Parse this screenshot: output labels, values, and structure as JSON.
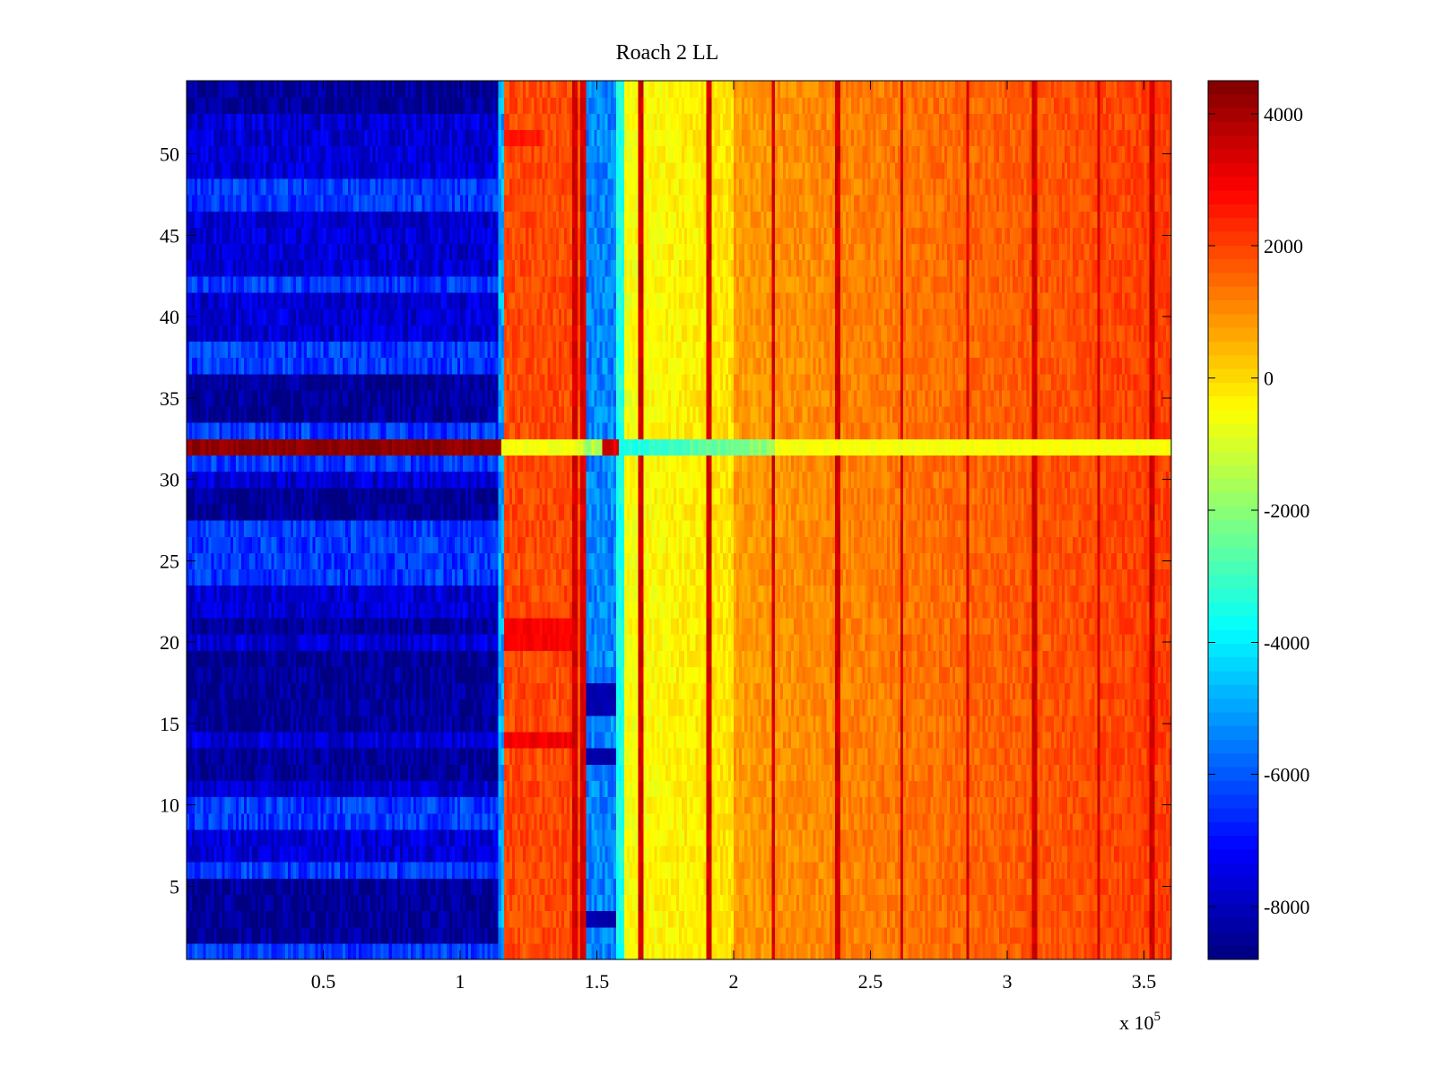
{
  "chart_data": {
    "type": "heatmap",
    "title": "Roach 2 LL",
    "xlabel": "",
    "ylabel": "",
    "x_multiplier_label": "x 10",
    "x_multiplier_exponent": "5",
    "xlim": [
      0,
      360000
    ],
    "ylim": [
      0.5,
      54.5
    ],
    "x_ticks": [
      50000,
      100000,
      150000,
      200000,
      250000,
      300000,
      350000
    ],
    "x_tick_labels": [
      "0.5",
      "1",
      "1.5",
      "2",
      "2.5",
      "3",
      "3.5"
    ],
    "y_ticks": [
      5,
      10,
      15,
      20,
      25,
      30,
      35,
      40,
      45,
      50
    ],
    "y_tick_labels": [
      "5",
      "10",
      "15",
      "20",
      "25",
      "30",
      "35",
      "40",
      "45",
      "50"
    ],
    "rows": 54,
    "colorbar": {
      "colormap": "jet",
      "clim": [
        -8800,
        4500
      ],
      "ticks": [
        -8000,
        -6000,
        -4000,
        -2000,
        0,
        2000,
        4000
      ],
      "tick_labels": [
        "-8000",
        "-6000",
        "-4000",
        "-2000",
        "0",
        "2000",
        "4000"
      ]
    },
    "regions": [
      {
        "x_range": [
          0,
          115000
        ],
        "value_approx": -7500,
        "description": "blue band (low values)"
      },
      {
        "x_range": [
          115000,
          145000
        ],
        "value_approx": 1800,
        "description": "orange band"
      },
      {
        "x_range": [
          145000,
          157000
        ],
        "value_approx": -5500,
        "description": "cyan/blue narrow band"
      },
      {
        "x_range": [
          157000,
          200000
        ],
        "value_approx": -200,
        "description": "yellow band"
      },
      {
        "x_range": [
          200000,
          360000
        ],
        "value_approx": 1500,
        "description": "orange, increasing to the right"
      }
    ],
    "outlier_row": {
      "row": 32,
      "left_value_approx": 4300,
      "right_value_approx": -1000
    },
    "dark_blue_rows_left": [
      2,
      3,
      4,
      5,
      12,
      13,
      15,
      16,
      17,
      18,
      19,
      21,
      28,
      29,
      34,
      35,
      36,
      53,
      54
    ],
    "light_rows_left": [
      1,
      6,
      9,
      10,
      24,
      25,
      26,
      27,
      31,
      33,
      37,
      38,
      42,
      47,
      48
    ],
    "red_vertical_lines_x": [
      142000,
      144500,
      166000,
      191000,
      214500,
      238000,
      261500,
      285500,
      310000,
      333500,
      353000
    ]
  }
}
